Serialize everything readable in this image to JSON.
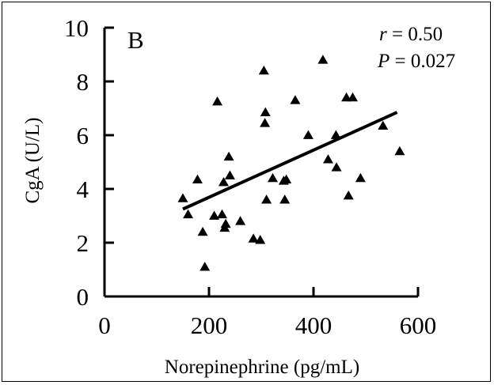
{
  "chart_data": {
    "type": "scatter",
    "panel_label": "B",
    "xlabel": "Norepinephrine (pg/mL)",
    "ylabel": "CgA (U/L)",
    "xlim": [
      0,
      600
    ],
    "ylim": [
      0,
      10
    ],
    "x_ticks": [
      0,
      200,
      400,
      600
    ],
    "y_ticks": [
      0,
      2,
      4,
      6,
      8,
      10
    ],
    "grid": false,
    "marker": "triangle",
    "annotations": {
      "r_symbol": "r",
      "r_value": " = 0.50",
      "p_symbol": "P",
      "p_value": " = 0.027"
    },
    "points": [
      {
        "x": 150,
        "y": 3.65
      },
      {
        "x": 160,
        "y": 3.05
      },
      {
        "x": 178,
        "y": 4.35
      },
      {
        "x": 188,
        "y": 2.4
      },
      {
        "x": 192,
        "y": 1.1
      },
      {
        "x": 210,
        "y": 3.0
      },
      {
        "x": 216,
        "y": 7.25
      },
      {
        "x": 225,
        "y": 3.05
      },
      {
        "x": 228,
        "y": 4.25
      },
      {
        "x": 230,
        "y": 2.55
      },
      {
        "x": 232,
        "y": 2.7
      },
      {
        "x": 238,
        "y": 5.2
      },
      {
        "x": 240,
        "y": 4.5
      },
      {
        "x": 260,
        "y": 2.8
      },
      {
        "x": 285,
        "y": 2.15
      },
      {
        "x": 298,
        "y": 2.1
      },
      {
        "x": 305,
        "y": 8.4
      },
      {
        "x": 307,
        "y": 6.45
      },
      {
        "x": 308,
        "y": 6.85
      },
      {
        "x": 310,
        "y": 3.6
      },
      {
        "x": 322,
        "y": 4.4
      },
      {
        "x": 343,
        "y": 4.3
      },
      {
        "x": 345,
        "y": 3.6
      },
      {
        "x": 348,
        "y": 4.35
      },
      {
        "x": 365,
        "y": 7.3
      },
      {
        "x": 390,
        "y": 6.0
      },
      {
        "x": 418,
        "y": 8.8
      },
      {
        "x": 428,
        "y": 5.1
      },
      {
        "x": 443,
        "y": 6.0
      },
      {
        "x": 444,
        "y": 4.8
      },
      {
        "x": 463,
        "y": 7.4
      },
      {
        "x": 467,
        "y": 3.75
      },
      {
        "x": 475,
        "y": 7.4
      },
      {
        "x": 490,
        "y": 4.4
      },
      {
        "x": 533,
        "y": 6.35
      },
      {
        "x": 565,
        "y": 5.4
      }
    ],
    "trendline": {
      "x": [
        150,
        560
      ],
      "y": [
        3.25,
        6.85
      ]
    }
  }
}
